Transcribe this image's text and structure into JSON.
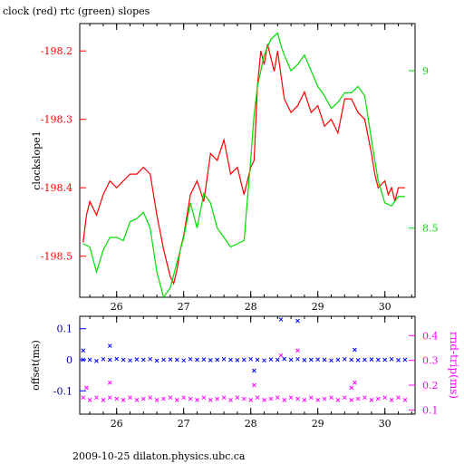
{
  "title": "clock (red) rtc (green) slopes",
  "footer": "2009-10-25  dilaton.physics.ubc.ca",
  "colors": {
    "red": "#ff0000",
    "green": "#00dd00",
    "blue": "#0000ff",
    "magenta": "#ff00ff",
    "axis": "#000000"
  },
  "chart_data": [
    {
      "type": "line",
      "panel": "top",
      "title": "clock (red) rtc (green) slopes",
      "xlabel": "",
      "ylabel": "clockslope1",
      "y2label": "",
      "xlim": [
        25.45,
        30.45
      ],
      "xticks": [
        "26",
        "27",
        "28",
        "29",
        "30"
      ],
      "ylim": [
        -198.56,
        -198.16
      ],
      "yticks": [
        "-198.2",
        "-198.3",
        "-198.4",
        "-198.5"
      ],
      "y2lim": [
        8.28,
        9.15
      ],
      "y2ticks": [
        "9",
        "8.5"
      ],
      "grid": false,
      "series": [
        {
          "name": "clock",
          "axis": "left",
          "color": "#ff0000",
          "x": [
            25.5,
            25.55,
            25.6,
            25.7,
            25.8,
            25.9,
            26.0,
            26.1,
            26.2,
            26.3,
            26.4,
            26.5,
            26.55,
            26.6,
            26.7,
            26.8,
            26.85,
            26.9,
            26.95,
            27.0,
            27.05,
            27.1,
            27.2,
            27.3,
            27.4,
            27.5,
            27.6,
            27.7,
            27.8,
            27.9,
            28.0,
            28.05,
            28.1,
            28.15,
            28.2,
            28.25,
            28.3,
            28.35,
            28.4,
            28.5,
            28.6,
            28.7,
            28.8,
            28.9,
            29.0,
            29.1,
            29.2,
            29.3,
            29.4,
            29.5,
            29.6,
            29.7,
            29.8,
            29.85,
            29.9,
            30.0,
            30.05,
            30.1,
            30.15,
            30.2,
            30.3
          ],
          "y": [
            -198.48,
            -198.44,
            -198.42,
            -198.44,
            -198.41,
            -198.39,
            -198.4,
            -198.39,
            -198.38,
            -198.38,
            -198.37,
            -198.38,
            -198.41,
            -198.44,
            -198.49,
            -198.53,
            -198.54,
            -198.52,
            -198.49,
            -198.47,
            -198.44,
            -198.41,
            -198.39,
            -198.42,
            -198.35,
            -198.36,
            -198.33,
            -198.38,
            -198.37,
            -198.41,
            -198.37,
            -198.36,
            -198.25,
            -198.2,
            -198.22,
            -198.19,
            -198.21,
            -198.23,
            -198.2,
            -198.27,
            -198.29,
            -198.28,
            -198.26,
            -198.29,
            -198.28,
            -198.31,
            -198.3,
            -198.32,
            -198.27,
            -198.27,
            -198.29,
            -198.3,
            -198.35,
            -198.38,
            -198.4,
            -198.39,
            -198.41,
            -198.4,
            -198.42,
            -198.4,
            -198.4
          ]
        },
        {
          "name": "rtc",
          "axis": "right",
          "color": "#00dd00",
          "x": [
            25.5,
            25.6,
            25.7,
            25.8,
            25.9,
            26.0,
            26.1,
            26.2,
            26.3,
            26.4,
            26.5,
            26.6,
            26.7,
            26.8,
            26.9,
            27.0,
            27.1,
            27.2,
            27.3,
            27.4,
            27.5,
            27.6,
            27.7,
            27.8,
            27.9,
            28.0,
            28.05,
            28.1,
            28.2,
            28.3,
            28.4,
            28.45,
            28.5,
            28.6,
            28.7,
            28.8,
            28.9,
            29.0,
            29.1,
            29.2,
            29.3,
            29.4,
            29.5,
            29.6,
            29.7,
            29.8,
            29.9,
            30.0,
            30.1,
            30.2,
            30.3
          ],
          "y": [
            8.45,
            8.44,
            8.36,
            8.43,
            8.47,
            8.47,
            8.46,
            8.52,
            8.53,
            8.55,
            8.5,
            8.36,
            8.28,
            8.31,
            8.39,
            8.47,
            8.58,
            8.5,
            8.61,
            8.58,
            8.5,
            8.47,
            8.44,
            8.45,
            8.46,
            8.72,
            8.86,
            8.95,
            9.05,
            9.1,
            9.12,
            9.08,
            9.05,
            9.0,
            9.02,
            9.05,
            9.0,
            8.95,
            8.92,
            8.88,
            8.9,
            8.93,
            8.93,
            8.95,
            8.92,
            8.78,
            8.65,
            8.58,
            8.57,
            8.6,
            8.6
          ]
        }
      ]
    },
    {
      "type": "scatter",
      "panel": "bottom",
      "xlabel": "",
      "ylabel": "offset(ms)",
      "y2label": "rnd-trip(ms)",
      "xlim": [
        25.45,
        30.45
      ],
      "xticks": [
        "26",
        "27",
        "28",
        "29",
        "30"
      ],
      "ylim": [
        -0.175,
        0.14
      ],
      "yticks": [
        "0.1",
        "0",
        "-0.1"
      ],
      "y2lim": [
        0.083,
        0.478
      ],
      "y2ticks": [
        "0.4",
        "0.3",
        "0.2",
        "0.1"
      ],
      "grid": false,
      "series": [
        {
          "name": "offset",
          "axis": "left",
          "color": "#0000ff",
          "x": [
            25.5,
            25.6,
            25.7,
            25.8,
            25.9,
            26.0,
            26.1,
            26.2,
            26.3,
            26.4,
            26.5,
            26.6,
            26.7,
            26.8,
            26.9,
            27.0,
            27.1,
            27.2,
            27.3,
            27.4,
            27.5,
            27.6,
            27.7,
            27.8,
            27.9,
            28.0,
            28.1,
            28.2,
            28.3,
            28.4,
            28.5,
            28.6,
            28.7,
            28.8,
            28.9,
            29.0,
            29.1,
            29.2,
            29.3,
            29.4,
            29.5,
            29.6,
            29.7,
            29.8,
            29.9,
            30.0,
            30.1,
            30.2,
            30.3,
            25.5,
            25.9,
            28.45,
            28.7,
            29.55,
            28.05
          ],
          "y": [
            0.0,
            0.0,
            -0.004,
            0.002,
            0.0,
            0.003,
            0.0,
            -0.002,
            0.001,
            0.0,
            0.002,
            -0.003,
            0.0,
            0.001,
            0.0,
            -0.002,
            0.002,
            0.0,
            0.001,
            -0.001,
            0.0,
            0.002,
            0.0,
            -0.001,
            0.0,
            0.002,
            0.0,
            -0.002,
            0.001,
            0.0,
            0.003,
            0.0,
            0.002,
            -0.001,
            0.0,
            0.001,
            0.0,
            -0.002,
            0.0,
            0.002,
            0.0,
            -0.001,
            0.0,
            0.001,
            0.0,
            0.0,
            0.002,
            -0.001,
            0.0,
            0.03,
            0.045,
            0.13,
            0.125,
            0.032,
            -0.035
          ]
        },
        {
          "name": "rnd-trip",
          "axis": "right",
          "color": "#ff00ff",
          "x": [
            25.5,
            25.6,
            25.7,
            25.8,
            25.9,
            26.0,
            26.1,
            26.2,
            26.3,
            26.4,
            26.5,
            26.6,
            26.7,
            26.8,
            26.9,
            27.0,
            27.1,
            27.2,
            27.3,
            27.4,
            27.5,
            27.6,
            27.7,
            27.8,
            27.9,
            28.0,
            28.1,
            28.2,
            28.3,
            28.4,
            28.5,
            28.6,
            28.7,
            28.8,
            28.9,
            29.0,
            29.1,
            29.2,
            29.3,
            29.4,
            29.5,
            29.6,
            29.7,
            29.8,
            29.9,
            30.0,
            30.1,
            30.2,
            30.3,
            25.9,
            28.45,
            28.7,
            28.05,
            29.5,
            29.55,
            25.55
          ],
          "y": [
            0.15,
            0.14,
            0.15,
            0.14,
            0.15,
            0.145,
            0.14,
            0.15,
            0.14,
            0.145,
            0.15,
            0.14,
            0.145,
            0.15,
            0.14,
            0.15,
            0.145,
            0.14,
            0.15,
            0.14,
            0.145,
            0.15,
            0.14,
            0.15,
            0.145,
            0.14,
            0.15,
            0.14,
            0.145,
            0.15,
            0.14,
            0.15,
            0.145,
            0.14,
            0.15,
            0.14,
            0.145,
            0.15,
            0.14,
            0.15,
            0.14,
            0.145,
            0.15,
            0.14,
            0.145,
            0.15,
            0.14,
            0.15,
            0.14,
            0.21,
            0.32,
            0.34,
            0.2,
            0.19,
            0.21,
            0.19
          ]
        }
      ]
    }
  ]
}
